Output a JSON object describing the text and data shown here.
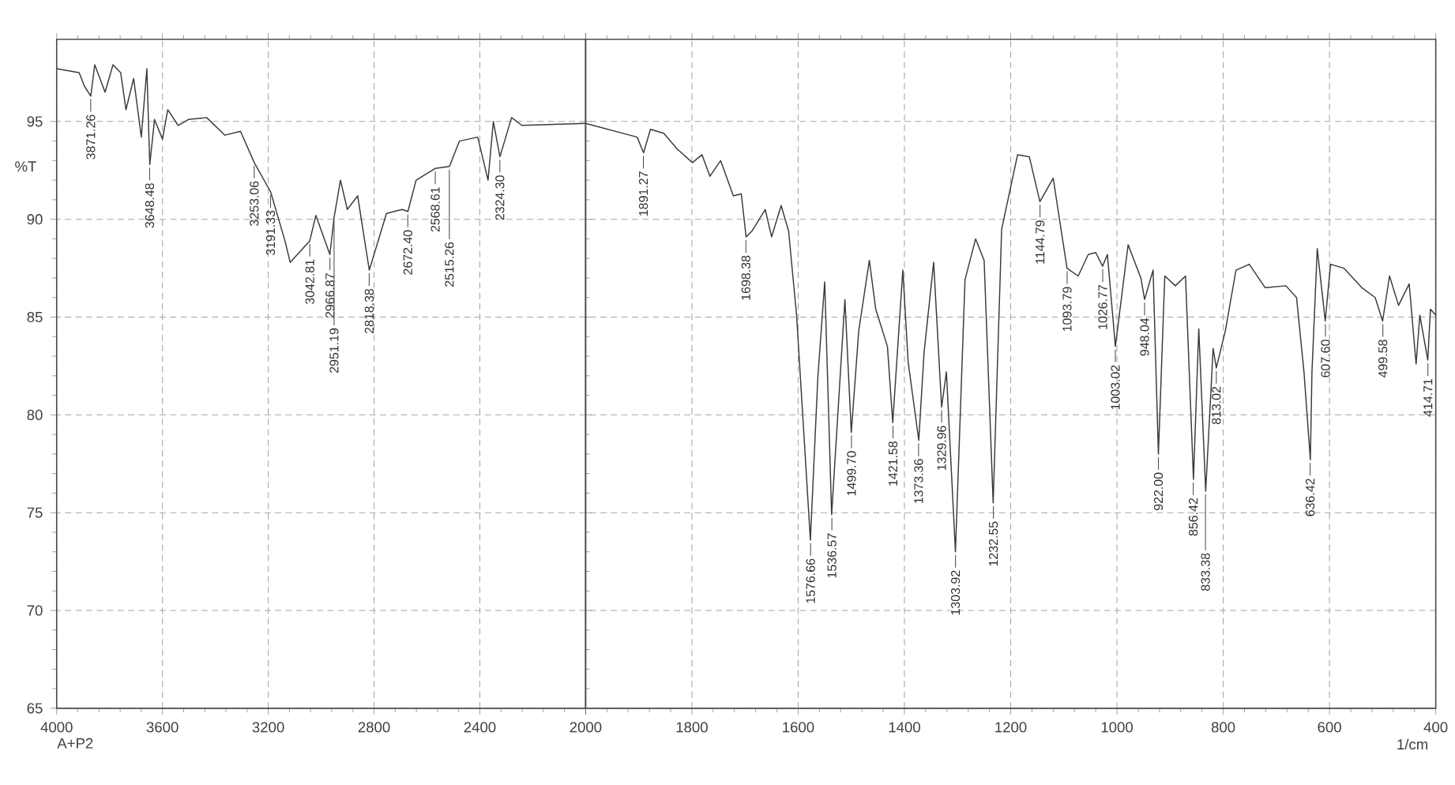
{
  "chart_data": [
    {
      "type": "line",
      "xlim": [
        4000,
        2000
      ],
      "ylim": [
        65,
        99.2
      ],
      "xticks": [
        4000,
        3600,
        3200,
        2800,
        2400,
        2000
      ],
      "yticks": [
        65,
        70,
        75,
        80,
        85,
        90,
        95
      ],
      "grid": true,
      "ylabel": "%T",
      "color": "#3a3a3a",
      "x": [
        4000,
        3915,
        3895,
        3871,
        3856,
        3817,
        3787,
        3758,
        3738,
        3709,
        3680,
        3659,
        3648,
        3630,
        3600,
        3580,
        3541,
        3502,
        3433,
        3364,
        3305,
        3253,
        3191,
        3137,
        3117,
        3043,
        3020,
        2967,
        2951,
        2927,
        2901,
        2862,
        2818,
        2753,
        2694,
        2672,
        2641,
        2569,
        2515,
        2477,
        2408,
        2369,
        2349,
        2324,
        2280,
        2241,
        2000
      ],
      "values": [
        97.7,
        97.5,
        96.8,
        96.3,
        97.9,
        96.5,
        97.9,
        97.5,
        95.6,
        97.2,
        94.2,
        97.7,
        92.8,
        95.1,
        94.1,
        95.6,
        94.8,
        95.1,
        95.2,
        94.3,
        94.5,
        92.9,
        91.4,
        88.9,
        87.8,
        88.9,
        90.2,
        88.2,
        90.1,
        92.0,
        90.5,
        91.2,
        87.4,
        90.3,
        90.5,
        90.4,
        92.0,
        92.6,
        92.7,
        94.0,
        94.2,
        92.0,
        95.0,
        93.2,
        95.2,
        94.8,
        94.9
      ],
      "annotations": [
        {
          "text": "3871.26",
          "x": 3871.26,
          "y": 96.3
        },
        {
          "text": "3648.48",
          "x": 3648.48,
          "y": 92.8
        },
        {
          "text": "3253.06",
          "x": 3253.06,
          "y": 92.9
        },
        {
          "text": "3191.33",
          "x": 3191.33,
          "y": 91.4
        },
        {
          "text": "3042.81",
          "x": 3042.81,
          "y": 88.9
        },
        {
          "text": "2966.87",
          "x": 2966.87,
          "y": 88.2
        },
        {
          "text": "2951.19",
          "x": 2951.19,
          "y": 90.1
        },
        {
          "text": "2818.38",
          "x": 2818.38,
          "y": 87.4
        },
        {
          "text": "2672.40",
          "x": 2672.4,
          "y": 90.4
        },
        {
          "text": "2568.61",
          "x": 2568.61,
          "y": 92.6
        },
        {
          "text": "2515.26",
          "x": 2515.26,
          "y": 92.7
        },
        {
          "text": "2324.30",
          "x": 2324.3,
          "y": 93.2
        },
        "A+P2"
      ]
    },
    {
      "type": "line",
      "xlim": [
        2000,
        400
      ],
      "ylim": [
        65,
        99.2
      ],
      "xticks": [
        {
          "value": 2000,
          "label": null
        },
        1800,
        1600,
        1400,
        1200,
        1000,
        800,
        600,
        400
      ],
      "yticks": [
        65,
        70,
        75,
        80,
        85,
        90,
        95
      ],
      "grid": true,
      "tick_labels": "x",
      "xlabel": "1/cm",
      "color": "#3a3a3a",
      "x": [
        2000,
        1903,
        1891,
        1878,
        1853,
        1828,
        1799,
        1781,
        1766,
        1746,
        1722,
        1707,
        1698,
        1687,
        1662,
        1650,
        1632,
        1618,
        1603,
        1577,
        1563,
        1550,
        1537,
        1512,
        1500,
        1486,
        1466,
        1454,
        1432,
        1422,
        1403,
        1393,
        1373,
        1363,
        1345,
        1330,
        1321,
        1304,
        1286,
        1266,
        1250,
        1233,
        1217,
        1187,
        1165,
        1145,
        1120,
        1094,
        1073,
        1054,
        1040,
        1027,
        1018,
        1003,
        979,
        955,
        948,
        932,
        922,
        910,
        890,
        871,
        856,
        846,
        833,
        819,
        813,
        796,
        776,
        751,
        721,
        682,
        662,
        648,
        636,
        633,
        623,
        608,
        598,
        573,
        539,
        514,
        500,
        487,
        470,
        450,
        437,
        430,
        415,
        410,
        400
      ],
      "values": [
        94.9,
        94.2,
        93.4,
        94.6,
        94.4,
        93.6,
        92.9,
        93.3,
        92.2,
        93.0,
        91.2,
        91.3,
        89.1,
        89.4,
        90.5,
        89.1,
        90.7,
        89.4,
        85.1,
        73.6,
        81.9,
        86.8,
        74.9,
        85.9,
        79.1,
        84.3,
        87.9,
        85.4,
        83.5,
        79.6,
        87.4,
        82.7,
        78.7,
        83.2,
        87.8,
        80.4,
        82.2,
        73.0,
        86.9,
        89.0,
        87.9,
        75.5,
        89.5,
        93.3,
        93.2,
        90.9,
        92.1,
        87.5,
        87.1,
        88.2,
        88.3,
        87.6,
        88.2,
        83.5,
        88.7,
        87.0,
        85.9,
        87.4,
        78.0,
        87.1,
        86.6,
        87.1,
        76.7,
        84.4,
        76.1,
        83.4,
        82.4,
        84.3,
        87.4,
        87.7,
        86.5,
        86.6,
        86.0,
        82.2,
        77.7,
        82.2,
        88.5,
        84.8,
        87.7,
        87.5,
        86.5,
        86.0,
        84.8,
        87.1,
        85.6,
        86.7,
        82.6,
        85.1,
        82.8,
        85.4,
        85.1
      ],
      "annotations": [
        {
          "text": "1891.27",
          "x": 1891.27,
          "y": 93.4
        },
        {
          "text": "1698.38",
          "x": 1698.38,
          "y": 89.1
        },
        {
          "text": "1576.66",
          "x": 1576.66,
          "y": 73.6
        },
        {
          "text": "1536.57",
          "x": 1536.57,
          "y": 74.9
        },
        {
          "text": "1499.70",
          "x": 1499.7,
          "y": 79.1
        },
        {
          "text": "1421.58",
          "x": 1421.58,
          "y": 79.6
        },
        {
          "text": "1373.36",
          "x": 1373.36,
          "y": 78.7
        },
        {
          "text": "1329.96",
          "x": 1329.96,
          "y": 80.4
        },
        {
          "text": "1303.92",
          "x": 1303.92,
          "y": 73.0
        },
        {
          "text": "1232.55",
          "x": 1232.55,
          "y": 75.5
        },
        {
          "text": "1144.79",
          "x": 1144.79,
          "y": 90.9
        },
        {
          "text": "1093.79",
          "x": 1093.79,
          "y": 87.5
        },
        {
          "text": "1026.77",
          "x": 1026.77,
          "y": 87.6
        },
        {
          "text": "1003.02",
          "x": 1003.02,
          "y": 83.5
        },
        {
          "text": "948.04",
          "x": 948.04,
          "y": 85.9
        },
        {
          "text": "922.00",
          "x": 922.0,
          "y": 78.0
        },
        {
          "text": "856.42",
          "x": 856.42,
          "y": 76.7
        },
        {
          "text": "833.38",
          "x": 833.38,
          "y": 76.1
        },
        {
          "text": "813.02",
          "x": 813.02,
          "y": 82.4
        },
        {
          "text": "636.42",
          "x": 636.42,
          "y": 77.7
        },
        {
          "text": "607.60",
          "x": 607.6,
          "y": 84.8
        },
        {
          "text": "499.58",
          "x": 499.58,
          "y": 84.8
        },
        {
          "text": "414.71",
          "x": 414.71,
          "y": 82.8
        }
      ]
    }
  ]
}
